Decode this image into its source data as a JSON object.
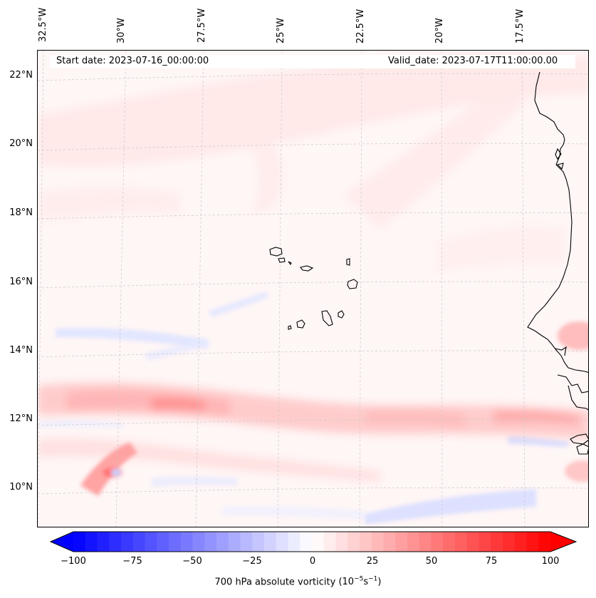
{
  "map": {
    "title_left": "Start date: 2023-07-16_00:00:00",
    "title_right": "Valid_date: 2023-07-17T11:00:00.00",
    "lon_labels": [
      "32.5°W",
      "30°W",
      "27.5°W",
      "25°W",
      "22.5°W",
      "20°W",
      "17.5°W"
    ],
    "lat_labels": [
      "22°N",
      "20°N",
      "18°N",
      "16°N",
      "14°N",
      "12°N",
      "10°N"
    ],
    "variable": "700 hPa absolute vorticity",
    "units_base": "(10",
    "units_exp1": "−5",
    "units_mid": "s",
    "units_exp2": "−1",
    "units_close": ")",
    "colorbar": {
      "ticks": [
        "−100",
        "−75",
        "−50",
        "−25",
        "0",
        "25",
        "50",
        "75",
        "100"
      ],
      "min": -100,
      "max": 100,
      "levels": 40,
      "neg_color": "#0000ff",
      "pos_color": "#ff0000",
      "mid_color": "#ffffff"
    },
    "features": [
      "cape-verde-islands",
      "west-africa-coastline",
      "vorticity-band-12N"
    ]
  }
}
